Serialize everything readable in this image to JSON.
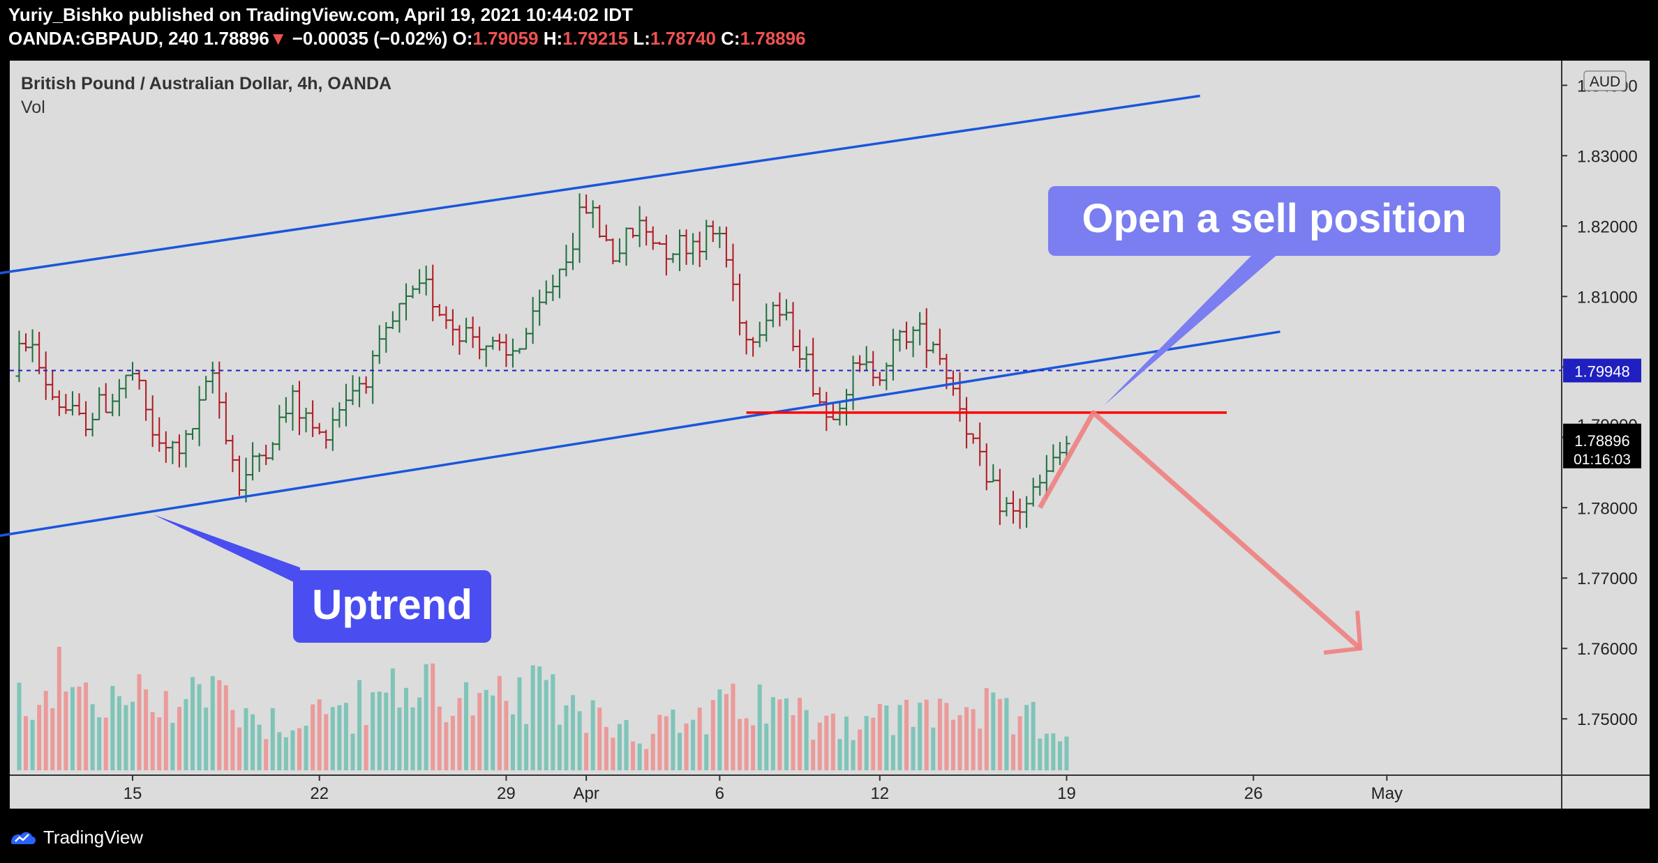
{
  "publisher_line": "Yuriy_Bishko published on TradingView.com, April 19, 2021 10:44:02 IDT",
  "ticker": {
    "symbol": "OANDA:GBPAUD, 240",
    "last": "1.78896",
    "arrow": "▼",
    "change": "−0.00035 (−0.02%)",
    "o_label": "O:",
    "o": "1.79059",
    "h_label": "H:",
    "h": "1.79215",
    "l_label": "L:",
    "l": "1.78740",
    "c_label": "C:",
    "c": "1.78896"
  },
  "legend": {
    "title": "British Pound / Australian Dollar, 4h, OANDA",
    "vol": "Vol"
  },
  "branding": "TradingView",
  "colors": {
    "up": "#26a69a",
    "down": "#ef5350",
    "trend": "#1a56db",
    "resistance": "#ff0000",
    "projection": "#f08080",
    "callout_uptrend": "#4a4ef0",
    "callout_sell": "#7a7ef0"
  },
  "chart_data": {
    "type": "candlestick",
    "symbol": "GBPAUD",
    "interval": "4h",
    "currency": "AUD",
    "ylim": [
      1.742,
      1.8435
    ],
    "y_ticks": [
      "1.84000",
      "1.83000",
      "1.82000",
      "1.81000",
      "1.80000",
      "1.79000",
      "1.78000",
      "1.77000",
      "1.76000",
      "1.75000"
    ],
    "x_ticks": [
      {
        "label": "15",
        "date": "2021-03-15"
      },
      {
        "label": "22",
        "date": "2021-03-22"
      },
      {
        "label": "29",
        "date": "2021-03-29"
      },
      {
        "label": "Apr",
        "date": "2021-04-01"
      },
      {
        "label": "6",
        "date": "2021-04-06"
      },
      {
        "label": "12",
        "date": "2021-04-12"
      },
      {
        "label": "19",
        "date": "2021-04-19"
      },
      {
        "label": "26",
        "date": "2021-04-26"
      },
      {
        "label": "May",
        "date": "2021-05-01"
      }
    ],
    "price_path": [
      [
        "2021-03-10",
        1.796
      ],
      [
        "2021-03-11",
        1.804
      ],
      [
        "2021-03-12",
        1.796
      ],
      [
        "2021-03-13",
        1.792
      ],
      [
        "2021-03-14",
        1.795
      ],
      [
        "2021-03-15",
        1.799
      ],
      [
        "2021-03-16",
        1.788
      ],
      [
        "2021-03-17",
        1.789
      ],
      [
        "2021-03-18",
        1.799
      ],
      [
        "2021-03-19",
        1.783
      ],
      [
        "2021-03-20",
        1.789
      ],
      [
        "2021-03-21",
        1.795
      ],
      [
        "2021-03-22",
        1.79
      ],
      [
        "2021-03-23",
        1.796
      ],
      [
        "2021-03-24",
        1.8
      ],
      [
        "2021-03-25",
        1.808
      ],
      [
        "2021-03-26",
        1.811
      ],
      [
        "2021-03-27",
        1.806
      ],
      [
        "2021-03-28",
        1.804
      ],
      [
        "2021-03-29",
        1.801
      ],
      [
        "2021-03-30",
        1.806
      ],
      [
        "2021-03-31",
        1.814
      ],
      [
        "2021-04-01",
        1.823
      ],
      [
        "2021-04-02",
        1.816
      ],
      [
        "2021-04-03",
        1.82
      ],
      [
        "2021-04-04",
        1.817
      ],
      [
        "2021-04-05",
        1.818
      ],
      [
        "2021-04-06",
        1.819
      ],
      [
        "2021-04-07",
        1.804
      ],
      [
        "2021-04-08",
        1.809
      ],
      [
        "2021-04-09",
        1.803
      ],
      [
        "2021-04-10",
        1.793
      ],
      [
        "2021-04-11",
        1.799
      ],
      [
        "2021-04-12",
        1.8
      ],
      [
        "2021-04-13",
        1.805
      ],
      [
        "2021-04-14",
        1.804
      ],
      [
        "2021-04-15",
        1.795
      ],
      [
        "2021-04-16",
        1.783
      ],
      [
        "2021-04-17",
        1.779
      ],
      [
        "2021-04-18",
        1.783
      ],
      [
        "2021-04-19",
        1.789
      ]
    ],
    "volume_path": [
      [
        "2021-03-10",
        35
      ],
      [
        "2021-03-12",
        55
      ],
      [
        "2021-03-14",
        40
      ],
      [
        "2021-03-16",
        45
      ],
      [
        "2021-03-18",
        50
      ],
      [
        "2021-03-20",
        30
      ],
      [
        "2021-03-22",
        35
      ],
      [
        "2021-03-24",
        40
      ],
      [
        "2021-03-26",
        55
      ],
      [
        "2021-03-28",
        38
      ],
      [
        "2021-03-30",
        45
      ],
      [
        "2021-04-01",
        40
      ],
      [
        "2021-04-03",
        22
      ],
      [
        "2021-04-05",
        30
      ],
      [
        "2021-04-07",
        40
      ],
      [
        "2021-04-09",
        35
      ],
      [
        "2021-04-11",
        30
      ],
      [
        "2021-04-13",
        32
      ],
      [
        "2021-04-15",
        40
      ],
      [
        "2021-04-17",
        30
      ],
      [
        "2021-04-19",
        28
      ]
    ],
    "price_labels": [
      {
        "text": "1.79948",
        "value": 1.79948,
        "style": "dashed-line"
      },
      {
        "text": "1.78896",
        "sub": "01:16:03",
        "value": 1.78896,
        "style": "last-price"
      }
    ],
    "partial_top_label": "1.84000",
    "trendlines": [
      {
        "name": "upper-channel",
        "from": [
          "2021-03-10",
          1.8133
        ],
        "to": [
          "2021-04-24",
          1.8385
        ]
      },
      {
        "name": "lower-channel",
        "from": [
          "2021-03-10",
          1.776
        ],
        "to": [
          "2021-04-27",
          1.805
        ]
      },
      {
        "name": "resistance",
        "from": [
          "2021-04-07",
          1.7935
        ],
        "to": [
          "2021-04-25",
          1.7935
        ]
      }
    ],
    "projection": {
      "points": [
        [
          "2021-04-18",
          1.78
        ],
        [
          "2021-04-20",
          1.7935
        ],
        [
          "2021-04-30",
          1.76
        ]
      ]
    },
    "annotations": [
      {
        "text": "Open a sell position"
      },
      {
        "text": "Uptrend"
      }
    ]
  }
}
